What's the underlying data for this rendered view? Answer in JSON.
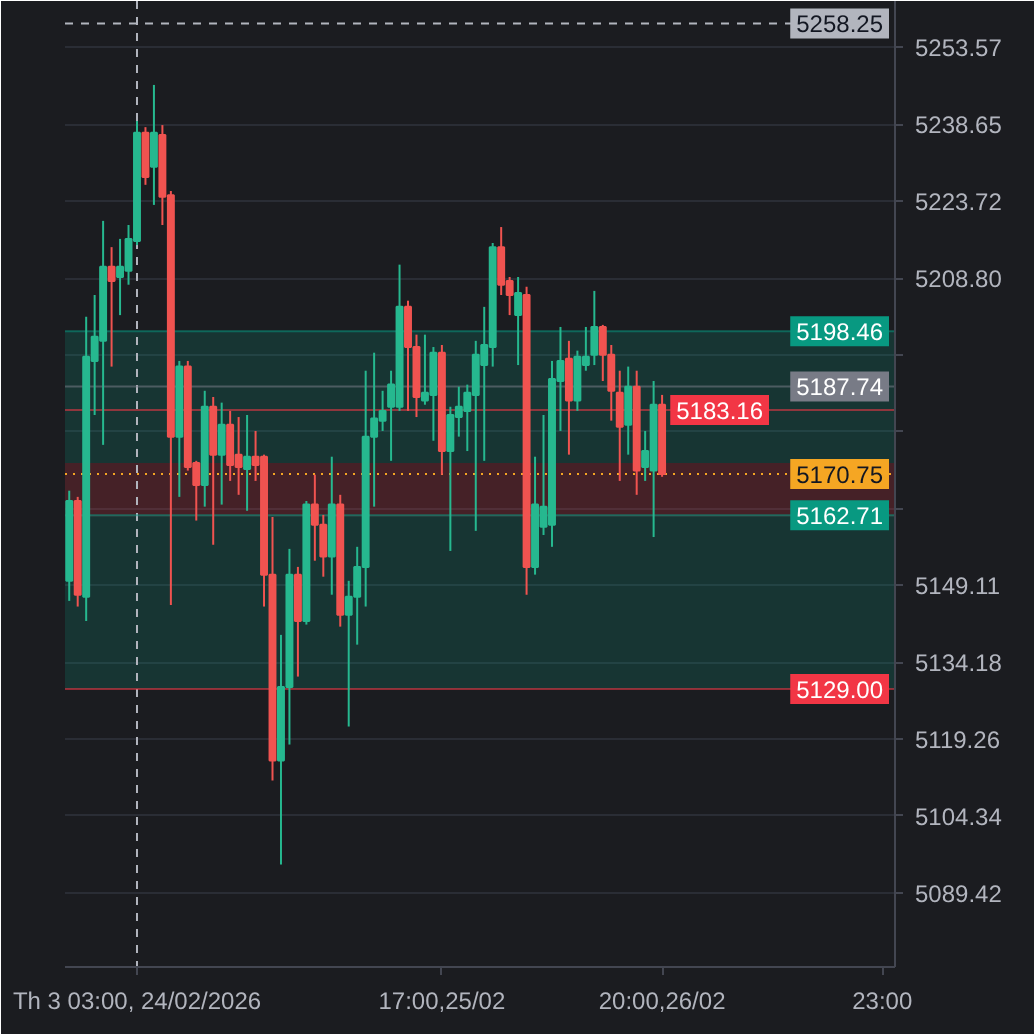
{
  "chart_data": {
    "type": "candlestick",
    "categories": [
      null,
      null,
      null,
      null,
      null,
      null,
      null,
      null,
      "Th 3 03:00, 24/02/2026",
      null,
      null,
      null,
      null,
      null,
      null,
      null,
      null,
      null,
      null,
      null,
      null,
      null,
      null,
      null,
      null,
      null,
      null,
      null,
      null,
      null,
      null,
      null,
      null,
      null,
      null,
      null,
      null,
      null,
      null,
      null,
      null,
      null,
      null,
      null,
      "17:00,25/02",
      null,
      null,
      null,
      null,
      null,
      null,
      null,
      null,
      null,
      null,
      null,
      null,
      null,
      null,
      null,
      null,
      null,
      null,
      null,
      null,
      null,
      null,
      null,
      null,
      null,
      "20:00,26/02",
      null,
      null,
      null,
      null,
      null,
      null,
      null,
      null,
      null,
      null,
      null,
      null,
      null,
      null,
      null,
      null,
      null,
      null,
      null,
      null,
      null,
      null,
      null,
      null,
      null,
      "23:00",
      null
    ],
    "ohlc": [
      [
        5150.0,
        5167.5,
        5146.1,
        5165.5
      ],
      [
        5165.5,
        5166.3,
        5145.0,
        5147.3
      ],
      [
        5146.9,
        5201.3,
        5142.2,
        5193.5
      ],
      [
        5192.7,
        5205.5,
        5182.2,
        5197.4
      ],
      [
        5196.6,
        5219.9,
        5176.4,
        5211.0
      ],
      [
        5211.0,
        5214.8,
        5191.6,
        5208.2
      ],
      [
        5209.0,
        5216.4,
        5201.6,
        5211.0
      ],
      [
        5210.2,
        5219.1,
        5207.5,
        5216.4
      ],
      [
        5216.0,
        5239.3,
        5215.2,
        5237.0
      ],
      [
        5237.0,
        5238.1,
        5226.9,
        5228.4
      ],
      [
        5230.4,
        5246.3,
        5223.0,
        5237.0
      ],
      [
        5236.6,
        5238.5,
        5219.1,
        5224.6
      ],
      [
        5224.9,
        5225.7,
        5145.3,
        5178.0
      ],
      [
        5178.0,
        5192.7,
        5166.3,
        5191.6
      ],
      [
        5191.6,
        5192.7,
        5171.4,
        5172.1
      ],
      [
        5172.9,
        5173.3,
        5161.7,
        5168.6
      ],
      [
        5168.6,
        5186.9,
        5164.4,
        5183.8
      ],
      [
        5183.8,
        5185.7,
        5157.0,
        5174.5
      ],
      [
        5174.5,
        5184.6,
        5164.8,
        5180.3
      ],
      [
        5180.3,
        5183.0,
        5169.4,
        5172.5
      ],
      [
        5174.5,
        5181.8,
        5166.7,
        5172.1
      ],
      [
        5171.7,
        5182.2,
        5163.6,
        5174.1
      ],
      [
        5174.1,
        5179.1,
        5169.4,
        5172.5
      ],
      [
        5174.1,
        5174.5,
        5145.0,
        5151.2
      ],
      [
        5151.2,
        5162.4,
        5111.2,
        5115.1
      ],
      [
        5115.1,
        5139.5,
        5094.9,
        5129.4
      ],
      [
        5129.4,
        5156.2,
        5118.2,
        5151.2
      ],
      [
        5151.2,
        5152.7,
        5131.4,
        5142.2
      ],
      [
        5142.2,
        5165.5,
        5141.5,
        5164.8
      ],
      [
        5164.8,
        5170.6,
        5153.9,
        5160.9
      ],
      [
        5160.9,
        5162.8,
        5150.8,
        5154.7
      ],
      [
        5154.7,
        5174.1,
        5147.3,
        5164.8
      ],
      [
        5164.8,
        5166.7,
        5141.1,
        5143.4
      ],
      [
        5143.4,
        5150.0,
        5121.7,
        5146.9
      ],
      [
        5146.9,
        5156.6,
        5137.6,
        5152.7
      ],
      [
        5152.7,
        5190.8,
        5145.0,
        5178.0
      ],
      [
        5178.0,
        5194.3,
        5164.4,
        5181.5
      ],
      [
        5181.1,
        5186.9,
        5179.1,
        5183.0
      ],
      [
        5183.8,
        5190.8,
        5173.3,
        5188.1
      ],
      [
        5183.8,
        5211.4,
        5183.0,
        5203.2
      ],
      [
        5203.2,
        5204.4,
        5183.0,
        5195.4
      ],
      [
        5195.4,
        5197.8,
        5181.8,
        5185.7
      ],
      [
        5185.0,
        5197.8,
        5184.2,
        5186.5
      ],
      [
        5186.1,
        5195.4,
        5177.2,
        5194.3
      ],
      [
        5194.3,
        5195.8,
        5170.6,
        5175.2
      ],
      [
        5175.2,
        5183.8,
        5155.8,
        5182.2
      ],
      [
        5181.8,
        5187.7,
        5178.0,
        5183.8
      ],
      [
        5183.0,
        5188.1,
        5175.2,
        5186.5
      ],
      [
        5186.1,
        5196.6,
        5159.7,
        5193.9
      ],
      [
        5191.9,
        5203.2,
        5173.3,
        5195.8
      ],
      [
        5195.4,
        5215.6,
        5191.6,
        5214.8
      ],
      [
        5214.8,
        5218.7,
        5205.5,
        5207.5
      ],
      [
        5208.2,
        5209.0,
        5201.6,
        5205.5
      ],
      [
        5201.6,
        5209.0,
        5191.9,
        5205.9
      ],
      [
        5205.5,
        5207.1,
        5147.3,
        5152.7
      ],
      [
        5152.7,
        5174.1,
        5151.2,
        5164.8
      ],
      [
        5160.5,
        5182.2,
        5158.9,
        5164.4
      ],
      [
        5160.9,
        5192.7,
        5156.6,
        5189.2
      ],
      [
        5188.8,
        5199.3,
        5179.1,
        5192.7
      ],
      [
        5193.1,
        5196.6,
        5174.5,
        5185.0
      ],
      [
        5185.0,
        5194.7,
        5183.0,
        5193.5
      ],
      [
        5191.9,
        5199.3,
        5190.8,
        5193.5
      ],
      [
        5193.9,
        5206.3,
        5191.9,
        5199.3
      ],
      [
        5199.3,
        5199.7,
        5188.8,
        5193.9
      ],
      [
        5193.9,
        5195.8,
        5181.1,
        5186.9
      ],
      [
        5186.5,
        5190.8,
        5169.4,
        5179.9
      ],
      [
        5180.3,
        5191.6,
        5174.5,
        5187.7
      ],
      [
        5187.7,
        5190.8,
        5166.7,
        5171.4
      ],
      [
        5172.1,
        5179.1,
        5169.4,
        5175.2
      ],
      [
        5171.4,
        5188.8,
        5158.5,
        5184.2
      ],
      [
        5184.2,
        5186.1,
        5170.2,
        5170.75
      ],
      null,
      null,
      null,
      null,
      null,
      null,
      null,
      null,
      null,
      null,
      null,
      null,
      null,
      null,
      null,
      null,
      null,
      null,
      null,
      null,
      null,
      null,
      null,
      null,
      null,
      null,
      null
    ],
    "colors": [
      "#26b88f",
      "#f05350",
      "#26b88f",
      "#26b88f",
      "#26b88f",
      "#f05350",
      "#26b88f",
      "#26b88f",
      "#26b88f",
      "#f05350",
      "#26b88f",
      "#f05350",
      "#f05350",
      "#26b88f",
      "#f05350",
      "#f05350",
      "#26b88f",
      "#f05350",
      "#26b88f",
      "#f05350",
      "#f05350",
      "#26b88f",
      "#f05350",
      "#f05350",
      "#f05350",
      "#26b88f",
      "#26b88f",
      "#f05350",
      "#26b88f",
      "#f05350",
      "#f05350",
      "#26b88f",
      "#f05350",
      "#26b88f",
      "#26b88f",
      "#26b88f",
      "#26b88f",
      "#26b88f",
      "#26b88f",
      "#26b88f",
      "#f05350",
      "#f05350",
      "#26b88f",
      "#26b88f",
      "#f05350",
      "#26b88f",
      "#26b88f",
      "#26b88f",
      "#26b88f",
      "#26b88f",
      "#26b88f",
      "#f05350",
      "#f05350",
      "#26b88f",
      "#f05350",
      "#26b88f",
      "#26b88f",
      "#26b88f",
      "#26b88f",
      "#f05350",
      "#26b88f",
      "#26b88f",
      "#26b88f",
      "#f05350",
      "#f05350",
      "#f05350",
      "#26b88f",
      "#f05350",
      "#26b88f",
      "#26b88f",
      "#f05350",
      null,
      null,
      null,
      null,
      null,
      null,
      null,
      null,
      null,
      null,
      null,
      null,
      null,
      null,
      null,
      null,
      null,
      null,
      null,
      null,
      null,
      null,
      null,
      null,
      null,
      null,
      null
    ],
    "ylim": [
      5075.0,
      5262.6
    ],
    "yticks": [
      5253.57,
      5238.65,
      5223.72,
      {
        "value": 5208.8,
        "label": "5208.80"
      },
      {
        "value": 5193.88,
        "label": null
      },
      {
        "value": 5178.96,
        "label": null
      },
      {
        "value": 5164.03,
        "label": null
      },
      5149.11,
      5134.18,
      5119.26,
      5104.34,
      5089.42
    ],
    "grid": "y",
    "bands": [
      {
        "axis": "y",
        "from": 5129.0,
        "to": 5162.71,
        "color": "#089981"
      },
      {
        "axis": "y",
        "from": 5172.9,
        "to": 5198.46,
        "color": "#089981"
      },
      {
        "axis": "y",
        "from": 5162.5,
        "to": 5172.9,
        "color": "#f23645"
      }
    ],
    "ref_lines": [
      {
        "axis": "x",
        "value": "Th 3 03:00, 24/02/2026",
        "color": "#b2b5be",
        "line_style": "dashed"
      },
      {
        "axis": "y",
        "value": 5258.25,
        "label": "5258.25",
        "color": "#b2b5be",
        "line_style": "dashed"
      },
      {
        "axis": "y",
        "value": 5198.46,
        "label": "5198.46",
        "color": "#089981"
      },
      {
        "axis": "y",
        "value": 5187.74,
        "label": "5187.74",
        "color": "#787b86"
      },
      {
        "axis": "y",
        "value": 5183.16,
        "label": "5183.16",
        "color": "#f23645"
      },
      {
        "axis": "y",
        "value": 5170.75,
        "label": "5170.75",
        "color": "#f5a623",
        "line_style": "dotted"
      },
      {
        "axis": "y",
        "value": 5162.71,
        "label": "5162.71",
        "color": "#089981"
      },
      {
        "axis": "y",
        "value": 5129.0,
        "label": "5129.00",
        "color": "#f23645"
      }
    ]
  }
}
